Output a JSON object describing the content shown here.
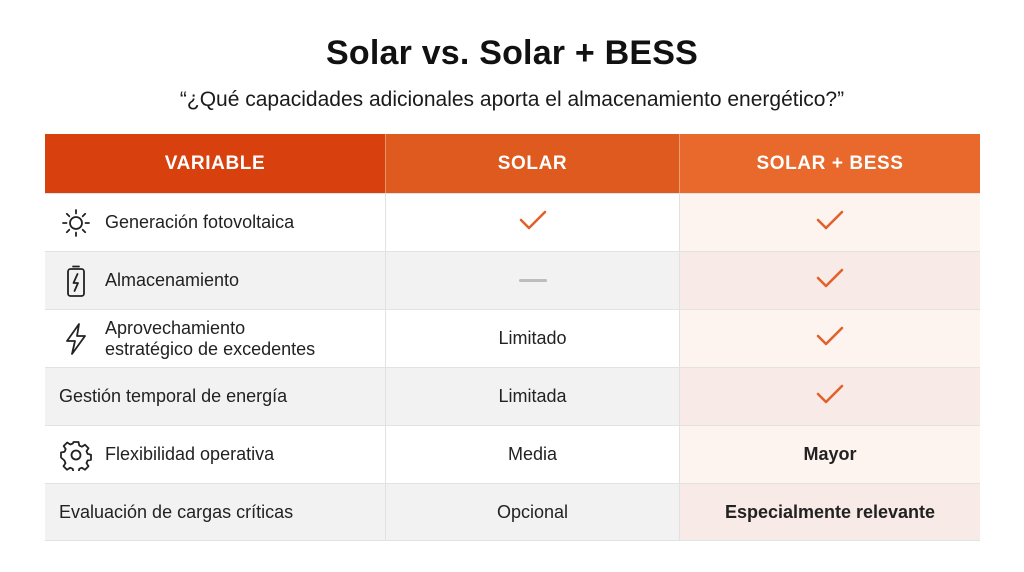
{
  "title": "Solar vs. Solar + BESS",
  "subtitle": "“¿Qué capacidades adicionales aporta el almacenamiento energético?”",
  "colors": {
    "accent": "#d8400e",
    "check": "#e0622a"
  },
  "table": {
    "headers": [
      "VARIABLE",
      "SOLAR",
      "SOLAR + BESS"
    ],
    "rows": [
      {
        "variable": "Generación fotovoltaica",
        "icon": "sun-icon",
        "solar": "",
        "solar_symbol": "check-icon",
        "bess": "",
        "bess_symbol": "check-icon"
      },
      {
        "variable": "Almacenamiento",
        "icon": "battery-icon",
        "solar": "",
        "solar_symbol": "dash-icon",
        "bess": "",
        "bess_symbol": "check-icon"
      },
      {
        "variable": "Aprovechamiento estratégico de excedentes",
        "variable_line1": "Aprovechamiento",
        "variable_line2": "estratégico de excedentes",
        "icon": "lightning-icon",
        "solar": "Limitado",
        "bess": "",
        "bess_symbol": "check-icon"
      },
      {
        "variable": "Gestión temporal de energía",
        "icon": "",
        "solar": "Limitada",
        "bess": "",
        "bess_symbol": "check-icon"
      },
      {
        "variable": "Flexibilidad operativa",
        "icon": "gear-icon",
        "solar": "Media",
        "bess": "Mayor"
      },
      {
        "variable": "Evaluación de cargas críticas",
        "icon": "",
        "solar": "Opcional",
        "bess": "Especialmente relevante"
      }
    ]
  }
}
